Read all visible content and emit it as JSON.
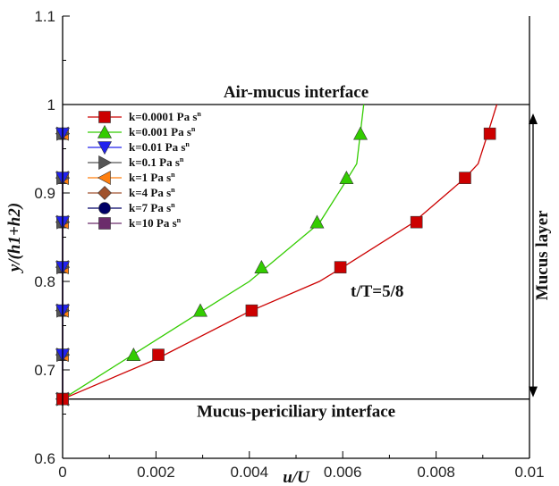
{
  "chart_data": {
    "type": "line",
    "xlabel": "u/U",
    "ylabel": "y/(h1+h2)",
    "xlim": [
      0,
      0.01
    ],
    "ylim": [
      0.6,
      1.1
    ],
    "xticks": [
      "0",
      "0.002",
      "0.004",
      "0.006",
      "0.008",
      "0.01"
    ],
    "yticks": [
      "0.6",
      "0.7",
      "0.8",
      "0.9",
      "1",
      "1.1"
    ],
    "grid": false,
    "legend_position": "top-left",
    "annotations": {
      "top_interface": "Air-mucus interface",
      "bottom_interface": "Mucus-periciliary interface",
      "time_label": "t/T=5/8",
      "layer_label": "Mucus layer"
    },
    "series": [
      {
        "name": "k=0.0001 Pa s",
        "name_sup": "n",
        "color": "#cc0000",
        "marker": "square",
        "line_x": [
          0,
          0.002,
          0.004,
          0.0055,
          0.006,
          0.0075,
          0.0086,
          0.0089,
          0.0091,
          0.0093
        ],
        "line_y": [
          0.667,
          0.712,
          0.766,
          0.8,
          0.816,
          0.866,
          0.916,
          0.933,
          0.966,
          1.0
        ],
        "marker_x": [
          0,
          0.00205,
          0.00405,
          0.00595,
          0.00758,
          0.00862,
          0.00915
        ],
        "marker_y": [
          0.667,
          0.717,
          0.767,
          0.816,
          0.867,
          0.917,
          0.967
        ]
      },
      {
        "name": "k=0.001 Pa s",
        "name_sup": "n",
        "color": "#33cc00",
        "marker": "triangle-up",
        "line_x": [
          0,
          0.0015,
          0.003,
          0.004,
          0.0055,
          0.0061,
          0.0063,
          0.00645
        ],
        "line_y": [
          0.667,
          0.717,
          0.767,
          0.8,
          0.866,
          0.916,
          0.933,
          1.0
        ],
        "marker_x": [
          0,
          0.00152,
          0.00295,
          0.00426,
          0.00545,
          0.00608,
          0.00638
        ],
        "marker_y": [
          0.667,
          0.717,
          0.767,
          0.816,
          0.867,
          0.917,
          0.967
        ]
      },
      {
        "name": "k=0.01 Pa s",
        "name_sup": "n",
        "color": "#2222ee",
        "marker": "triangle-down",
        "x": [
          0,
          0,
          0,
          0,
          0,
          0,
          0
        ],
        "y": [
          0.667,
          0.717,
          0.767,
          0.816,
          0.867,
          0.917,
          0.967
        ]
      },
      {
        "name": "k=0.1 Pa s",
        "name_sup": "n",
        "color": "#555555",
        "marker": "triangle-right",
        "x": [
          0,
          0,
          0,
          0,
          0,
          0,
          0
        ],
        "y": [
          0.667,
          0.717,
          0.767,
          0.816,
          0.867,
          0.917,
          0.967
        ]
      },
      {
        "name": "k=1 Pa s",
        "name_sup": "n",
        "color": "#ff7f0e",
        "marker": "triangle-left",
        "x": [
          0,
          0,
          0,
          0,
          0,
          0,
          0
        ],
        "y": [
          0.667,
          0.717,
          0.767,
          0.816,
          0.867,
          0.917,
          0.967
        ]
      },
      {
        "name": "k=4 Pa s",
        "name_sup": "n",
        "color": "#a0522d",
        "marker": "diamond",
        "x": [
          0,
          0,
          0,
          0,
          0,
          0,
          0
        ],
        "y": [
          0.667,
          0.717,
          0.767,
          0.816,
          0.867,
          0.917,
          0.967
        ]
      },
      {
        "name": "k=7 Pa s",
        "name_sup": "n",
        "color": "#000066",
        "marker": "circle",
        "x": [
          0,
          0,
          0,
          0,
          0,
          0,
          0
        ],
        "y": [
          0.667,
          0.717,
          0.767,
          0.816,
          0.867,
          0.917,
          0.967
        ]
      },
      {
        "name": "k=10 Pa s",
        "name_sup": "n",
        "color": "#6b2c6b",
        "marker": "square",
        "x": [
          0,
          0,
          0,
          0,
          0,
          0,
          0
        ],
        "y": [
          0.667,
          0.717,
          0.767,
          0.816,
          0.867,
          0.917,
          0.967
        ]
      }
    ]
  }
}
